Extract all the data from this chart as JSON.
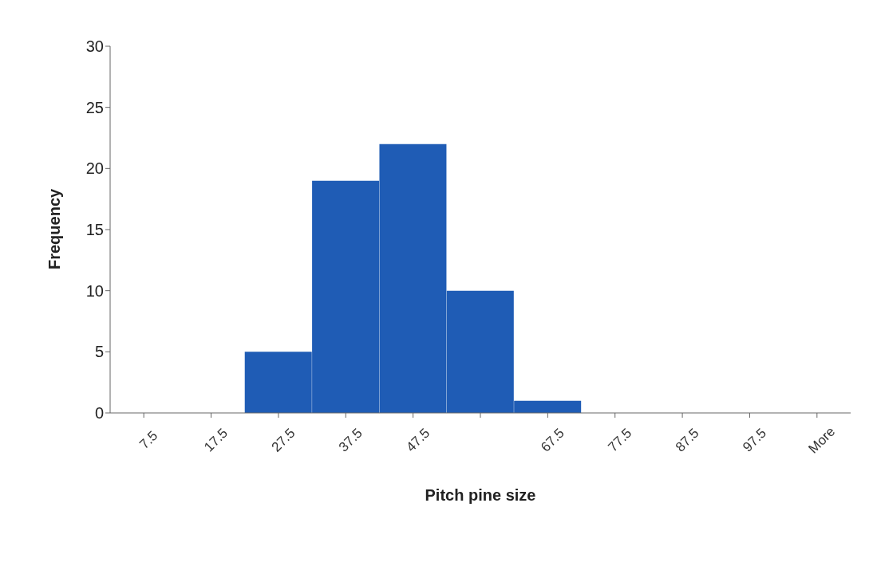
{
  "chart_data": {
    "type": "bar",
    "xlabel": "Pitch pine size",
    "ylabel": "Frequency",
    "categories": [
      "7.5",
      "17.5",
      "27.5",
      "37.5",
      "47.5",
      null,
      "67.5",
      "77.5",
      "87.5",
      "97.5",
      "More"
    ],
    "values": [
      0,
      0,
      5,
      19,
      22,
      10,
      1,
      0,
      0,
      0,
      0
    ],
    "color": "#1f5cb5",
    "ylim": [
      0,
      30
    ],
    "yticks": [
      0,
      5,
      10,
      15,
      20,
      25,
      30
    ],
    "grid": false,
    "legend": false
  }
}
